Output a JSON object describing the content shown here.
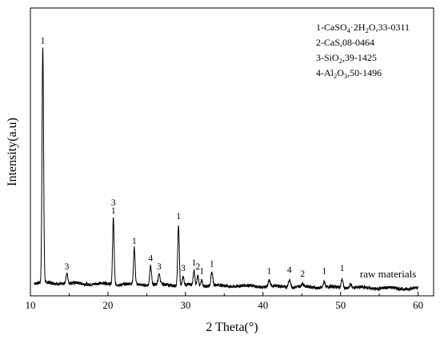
{
  "chart_data": {
    "type": "line",
    "xlabel": "2 Theta(°)",
    "ylabel": "Intensity(a.u)",
    "xlim": [
      10,
      62
    ],
    "ylim": [
      0,
      100
    ],
    "xticks": [
      10,
      20,
      30,
      40,
      50,
      60
    ],
    "y_ticks_labeled": false,
    "grid": false,
    "series": [
      {
        "name": "raw materials",
        "baseline": 4.5,
        "baseline_end": 2.5,
        "x_range": [
          10.5,
          60
        ],
        "peaks": [
          {
            "x": 11.6,
            "height": 82,
            "width": 0.1
          },
          {
            "x": 14.7,
            "height": 3.5,
            "width": 0.12
          },
          {
            "x": 20.7,
            "height": 23,
            "width": 0.1
          },
          {
            "x": 23.4,
            "height": 12.5,
            "width": 0.1
          },
          {
            "x": 25.5,
            "height": 6.5,
            "width": 0.12
          },
          {
            "x": 26.6,
            "height": 3.5,
            "width": 0.12
          },
          {
            "x": 29.1,
            "height": 21,
            "width": 0.1
          },
          {
            "x": 29.7,
            "height": 3,
            "width": 0.1
          },
          {
            "x": 31.1,
            "height": 5,
            "width": 0.1
          },
          {
            "x": 31.6,
            "height": 3.5,
            "width": 0.1
          },
          {
            "x": 32.1,
            "height": 2,
            "width": 0.1
          },
          {
            "x": 33.4,
            "height": 4.5,
            "width": 0.12
          },
          {
            "x": 40.8,
            "height": 2,
            "width": 0.12
          },
          {
            "x": 43.4,
            "height": 2.5,
            "width": 0.15
          },
          {
            "x": 45.1,
            "height": 1,
            "width": 0.12
          },
          {
            "x": 47.9,
            "height": 2,
            "width": 0.12
          },
          {
            "x": 50.2,
            "height": 3,
            "width": 0.12
          },
          {
            "x": 51.3,
            "height": 1.5,
            "width": 0.12
          }
        ]
      }
    ],
    "peak_labels": [
      {
        "x": 11.6,
        "text": "1"
      },
      {
        "x": 14.7,
        "text": "3"
      },
      {
        "x": 20.7,
        "text": "1"
      },
      {
        "x": 20.7,
        "text": "3",
        "stack": 1
      },
      {
        "x": 23.4,
        "text": "1"
      },
      {
        "x": 25.5,
        "text": "4"
      },
      {
        "x": 26.6,
        "text": "3"
      },
      {
        "x": 29.1,
        "text": "1"
      },
      {
        "x": 29.7,
        "text": "3"
      },
      {
        "x": 31.1,
        "text": "1"
      },
      {
        "x": 31.6,
        "text": "2"
      },
      {
        "x": 32.1,
        "text": "1"
      },
      {
        "x": 33.4,
        "text": "1"
      },
      {
        "x": 40.8,
        "text": "1"
      },
      {
        "x": 43.4,
        "text": "4"
      },
      {
        "x": 45.1,
        "text": "2"
      },
      {
        "x": 47.9,
        "text": "1"
      },
      {
        "x": 50.2,
        "text": "1"
      }
    ],
    "legend": [
      {
        "prefix": "1-CaSO",
        "sub1": "4",
        "mid": "·2H",
        "sub2": "2",
        "suffix": "O,33-0311"
      },
      {
        "prefix": "2-CaS,08-0464",
        "sub1": "",
        "mid": "",
        "sub2": "",
        "suffix": ""
      },
      {
        "prefix": "3-SiO",
        "sub1": "2",
        "mid": ",39-1425",
        "sub2": "",
        "suffix": ""
      },
      {
        "prefix": "4-Al",
        "sub1": "2",
        "mid": "O",
        "sub2": "3",
        "suffix": ",50-1496"
      }
    ],
    "legend_placement": "top-right",
    "series_label_placement": "right-end-of-trace"
  }
}
